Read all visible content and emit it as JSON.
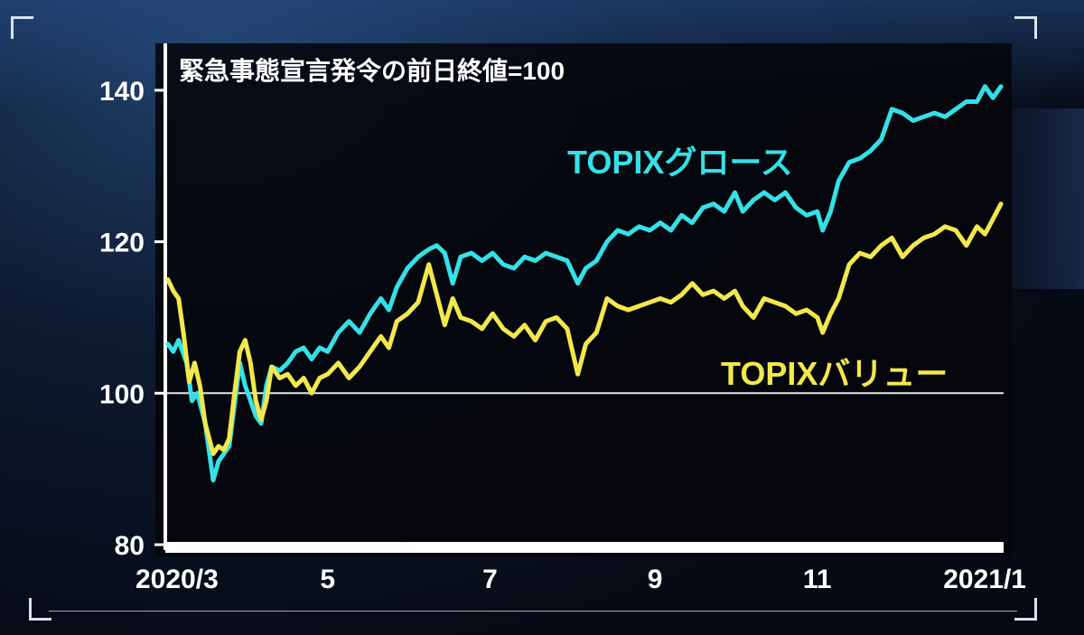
{
  "chart_data": {
    "type": "line",
    "title": "緊急事態宣言発令の前日終値=100",
    "xlabel": "",
    "ylabel": "",
    "ylim": [
      80,
      145
    ],
    "yticks": [
      80,
      100,
      120,
      140
    ],
    "xlim": [
      "2020-03-01",
      "2021-01-10"
    ],
    "xticks": [
      {
        "date": "2020-03-01",
        "label": "2020/3"
      },
      {
        "date": "2020-05-01",
        "label": "5"
      },
      {
        "date": "2020-07-01",
        "label": "7"
      },
      {
        "date": "2020-09-01",
        "label": "9"
      },
      {
        "date": "2020-11-01",
        "label": "11"
      },
      {
        "date": "2021-01-01",
        "label": "2021/1"
      }
    ],
    "reference_line": 100,
    "grid": false,
    "series": [
      {
        "name": "TOPIXグロース",
        "color": "#35e0e8",
        "points": [
          [
            "2020-03-02",
            106.5
          ],
          [
            "2020-03-04",
            105.5
          ],
          [
            "2020-03-06",
            107.0
          ],
          [
            "2020-03-09",
            104.0
          ],
          [
            "2020-03-11",
            99.0
          ],
          [
            "2020-03-13",
            100.0
          ],
          [
            "2020-03-16",
            96.0
          ],
          [
            "2020-03-18",
            91.0
          ],
          [
            "2020-03-19",
            88.5
          ],
          [
            "2020-03-21",
            91.0
          ],
          [
            "2020-03-23",
            92.0
          ],
          [
            "2020-03-25",
            93.0
          ],
          [
            "2020-03-27",
            98.5
          ],
          [
            "2020-03-29",
            104.0
          ],
          [
            "2020-03-31",
            101.0
          ],
          [
            "2020-04-02",
            99.0
          ],
          [
            "2020-04-04",
            97.0
          ],
          [
            "2020-04-06",
            96.0
          ],
          [
            "2020-04-08",
            101.0
          ],
          [
            "2020-04-10",
            103.5
          ],
          [
            "2020-04-13",
            103.0
          ],
          [
            "2020-04-16",
            104.0
          ],
          [
            "2020-04-19",
            105.5
          ],
          [
            "2020-04-22",
            106.0
          ],
          [
            "2020-04-25",
            104.5
          ],
          [
            "2020-04-28",
            106.0
          ],
          [
            "2020-05-01",
            105.5
          ],
          [
            "2020-05-05",
            108.0
          ],
          [
            "2020-05-09",
            109.5
          ],
          [
            "2020-05-13",
            108.0
          ],
          [
            "2020-05-17",
            110.5
          ],
          [
            "2020-05-21",
            112.5
          ],
          [
            "2020-05-24",
            111.0
          ],
          [
            "2020-05-27",
            114.0
          ],
          [
            "2020-05-31",
            116.5
          ],
          [
            "2020-06-04",
            118.0
          ],
          [
            "2020-06-08",
            119.0
          ],
          [
            "2020-06-11",
            119.5
          ],
          [
            "2020-06-14",
            118.5
          ],
          [
            "2020-06-17",
            114.5
          ],
          [
            "2020-06-20",
            118.0
          ],
          [
            "2020-06-24",
            118.5
          ],
          [
            "2020-06-28",
            117.5
          ],
          [
            "2020-07-02",
            118.5
          ],
          [
            "2020-07-06",
            117.0
          ],
          [
            "2020-07-10",
            116.5
          ],
          [
            "2020-07-14",
            118.0
          ],
          [
            "2020-07-18",
            117.5
          ],
          [
            "2020-07-22",
            118.5
          ],
          [
            "2020-07-26",
            118.0
          ],
          [
            "2020-07-30",
            117.5
          ],
          [
            "2020-08-03",
            114.5
          ],
          [
            "2020-08-06",
            116.5
          ],
          [
            "2020-08-10",
            117.5
          ],
          [
            "2020-08-14",
            120.0
          ],
          [
            "2020-08-18",
            121.5
          ],
          [
            "2020-08-22",
            121.0
          ],
          [
            "2020-08-26",
            122.0
          ],
          [
            "2020-08-30",
            121.5
          ],
          [
            "2020-09-03",
            122.5
          ],
          [
            "2020-09-07",
            121.5
          ],
          [
            "2020-09-11",
            123.5
          ],
          [
            "2020-09-15",
            122.5
          ],
          [
            "2020-09-19",
            124.5
          ],
          [
            "2020-09-23",
            125.0
          ],
          [
            "2020-09-27",
            124.0
          ],
          [
            "2020-10-01",
            126.5
          ],
          [
            "2020-10-04",
            124.0
          ],
          [
            "2020-10-08",
            125.5
          ],
          [
            "2020-10-12",
            126.5
          ],
          [
            "2020-10-16",
            125.5
          ],
          [
            "2020-10-20",
            126.5
          ],
          [
            "2020-10-24",
            124.5
          ],
          [
            "2020-10-28",
            123.5
          ],
          [
            "2020-11-01",
            124.0
          ],
          [
            "2020-11-03",
            121.5
          ],
          [
            "2020-11-06",
            124.0
          ],
          [
            "2020-11-09",
            128.0
          ],
          [
            "2020-11-13",
            130.5
          ],
          [
            "2020-11-17",
            131.0
          ],
          [
            "2020-11-21",
            132.0
          ],
          [
            "2020-11-25",
            133.5
          ],
          [
            "2020-11-29",
            137.5
          ],
          [
            "2020-12-03",
            137.0
          ],
          [
            "2020-12-07",
            136.0
          ],
          [
            "2020-12-11",
            136.5
          ],
          [
            "2020-12-15",
            137.0
          ],
          [
            "2020-12-19",
            136.5
          ],
          [
            "2020-12-23",
            137.5
          ],
          [
            "2020-12-27",
            138.5
          ],
          [
            "2020-12-31",
            138.5
          ],
          [
            "2021-01-03",
            140.5
          ],
          [
            "2021-01-06",
            139.0
          ],
          [
            "2021-01-09",
            140.5
          ]
        ]
      },
      {
        "name": "TOPIXバリュー",
        "color": "#f2e84c",
        "points": [
          [
            "2020-03-02",
            115.0
          ],
          [
            "2020-03-04",
            113.5
          ],
          [
            "2020-03-06",
            112.5
          ],
          [
            "2020-03-08",
            107.5
          ],
          [
            "2020-03-10",
            101.5
          ],
          [
            "2020-03-12",
            104.0
          ],
          [
            "2020-03-14",
            101.0
          ],
          [
            "2020-03-16",
            96.0
          ],
          [
            "2020-03-19",
            92.0
          ],
          [
            "2020-03-21",
            93.0
          ],
          [
            "2020-03-23",
            92.5
          ],
          [
            "2020-03-25",
            94.0
          ],
          [
            "2020-03-27",
            100.0
          ],
          [
            "2020-03-29",
            105.5
          ],
          [
            "2020-03-31",
            107.0
          ],
          [
            "2020-04-02",
            104.0
          ],
          [
            "2020-04-04",
            99.0
          ],
          [
            "2020-04-06",
            96.5
          ],
          [
            "2020-04-08",
            99.0
          ],
          [
            "2020-04-10",
            103.5
          ],
          [
            "2020-04-13",
            102.0
          ],
          [
            "2020-04-16",
            102.5
          ],
          [
            "2020-04-19",
            101.0
          ],
          [
            "2020-04-22",
            102.0
          ],
          [
            "2020-04-25",
            100.0
          ],
          [
            "2020-04-28",
            102.0
          ],
          [
            "2020-05-01",
            102.5
          ],
          [
            "2020-05-05",
            104.0
          ],
          [
            "2020-05-09",
            102.0
          ],
          [
            "2020-05-13",
            103.5
          ],
          [
            "2020-05-17",
            105.5
          ],
          [
            "2020-05-21",
            107.5
          ],
          [
            "2020-05-24",
            106.0
          ],
          [
            "2020-05-27",
            109.5
          ],
          [
            "2020-05-31",
            110.5
          ],
          [
            "2020-06-04",
            112.0
          ],
          [
            "2020-06-08",
            117.0
          ],
          [
            "2020-06-11",
            113.0
          ],
          [
            "2020-06-14",
            109.0
          ],
          [
            "2020-06-17",
            112.5
          ],
          [
            "2020-06-20",
            110.0
          ],
          [
            "2020-06-24",
            109.5
          ],
          [
            "2020-06-28",
            108.5
          ],
          [
            "2020-07-02",
            110.5
          ],
          [
            "2020-07-06",
            108.5
          ],
          [
            "2020-07-10",
            107.5
          ],
          [
            "2020-07-14",
            109.0
          ],
          [
            "2020-07-18",
            107.0
          ],
          [
            "2020-07-22",
            109.5
          ],
          [
            "2020-07-26",
            110.0
          ],
          [
            "2020-07-30",
            108.5
          ],
          [
            "2020-08-03",
            102.5
          ],
          [
            "2020-08-06",
            106.5
          ],
          [
            "2020-08-10",
            108.0
          ],
          [
            "2020-08-14",
            112.5
          ],
          [
            "2020-08-18",
            111.5
          ],
          [
            "2020-08-22",
            111.0
          ],
          [
            "2020-08-26",
            111.5
          ],
          [
            "2020-08-30",
            112.0
          ],
          [
            "2020-09-03",
            112.5
          ],
          [
            "2020-09-07",
            112.0
          ],
          [
            "2020-09-11",
            113.0
          ],
          [
            "2020-09-15",
            114.5
          ],
          [
            "2020-09-19",
            113.0
          ],
          [
            "2020-09-23",
            113.5
          ],
          [
            "2020-09-27",
            112.5
          ],
          [
            "2020-10-01",
            113.5
          ],
          [
            "2020-10-04",
            111.5
          ],
          [
            "2020-10-08",
            110.0
          ],
          [
            "2020-10-12",
            112.5
          ],
          [
            "2020-10-16",
            112.0
          ],
          [
            "2020-10-20",
            111.5
          ],
          [
            "2020-10-24",
            110.5
          ],
          [
            "2020-10-28",
            111.0
          ],
          [
            "2020-11-01",
            110.0
          ],
          [
            "2020-11-03",
            108.0
          ],
          [
            "2020-11-06",
            110.5
          ],
          [
            "2020-11-09",
            112.5
          ],
          [
            "2020-11-13",
            117.0
          ],
          [
            "2020-11-17",
            118.5
          ],
          [
            "2020-11-21",
            118.0
          ],
          [
            "2020-11-25",
            119.5
          ],
          [
            "2020-11-29",
            120.5
          ],
          [
            "2020-12-03",
            118.0
          ],
          [
            "2020-12-07",
            119.5
          ],
          [
            "2020-12-11",
            120.5
          ],
          [
            "2020-12-15",
            121.0
          ],
          [
            "2020-12-19",
            122.0
          ],
          [
            "2020-12-23",
            121.5
          ],
          [
            "2020-12-27",
            119.5
          ],
          [
            "2020-12-31",
            122.0
          ],
          [
            "2021-01-03",
            121.0
          ],
          [
            "2021-01-06",
            123.0
          ],
          [
            "2021-01-09",
            125.0
          ]
        ]
      }
    ]
  }
}
